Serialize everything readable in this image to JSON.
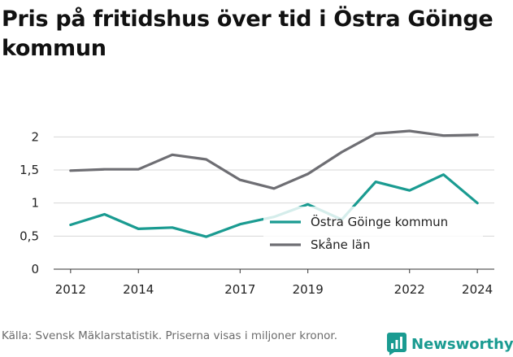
{
  "header": {
    "title": "Pris på fritidshus över tid i Östra Göinge kommun"
  },
  "footer": {
    "source": "Källa: Svensk Mäklarstatistik. Priserna visas i miljoner kronor.",
    "brand": "Newsworthy",
    "brand_icon": "bar-chart-logo-icon"
  },
  "chart_data": {
    "type": "line",
    "title": "Pris på fritidshus över tid i Östra Göinge kommun",
    "xlabel": "",
    "ylabel": "",
    "x": [
      2012,
      2013,
      2014,
      2015,
      2016,
      2017,
      2018,
      2019,
      2020,
      2021,
      2022,
      2023,
      2024
    ],
    "xticks": [
      2012,
      2014,
      2017,
      2019,
      2022,
      2024
    ],
    "xlim": [
      2011.5,
      2024.5
    ],
    "ylim": [
      0,
      2.25
    ],
    "yticks": [
      0,
      0.5,
      1,
      1.5,
      2
    ],
    "ytick_labels": [
      "0",
      "0,5",
      "1",
      "1,5",
      "2"
    ],
    "grid": true,
    "legend_position": "center-right",
    "series": [
      {
        "name": "Östra Göinge kommun",
        "color": "#1a9b91",
        "values": [
          0.67,
          0.83,
          0.61,
          0.63,
          0.49,
          0.68,
          0.79,
          0.98,
          0.75,
          1.32,
          1.19,
          1.43,
          1.0
        ]
      },
      {
        "name": "Skåne län",
        "color": "#6e6e73",
        "values": [
          1.49,
          1.51,
          1.51,
          1.73,
          1.66,
          1.35,
          1.22,
          1.44,
          1.77,
          2.05,
          2.09,
          2.02,
          2.03
        ]
      }
    ]
  }
}
